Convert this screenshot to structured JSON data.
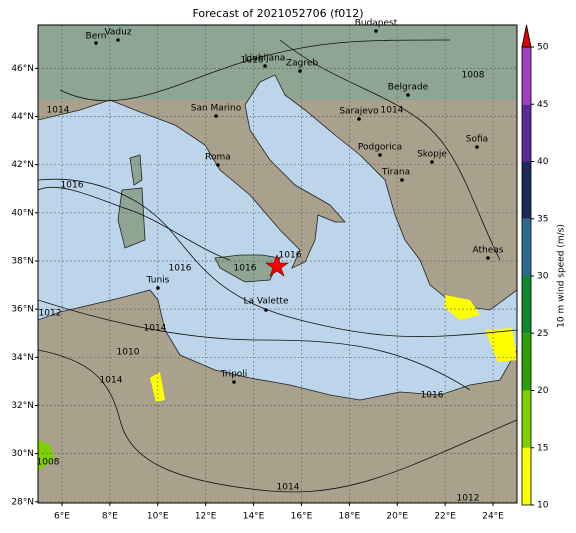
{
  "map": {
    "title": "Forecast of 2021052706 (f012)",
    "xlim": [
      5,
      25
    ],
    "ylim": [
      27.95,
      47.8
    ],
    "xticks": [
      {
        "value": 6,
        "label": "6°E"
      },
      {
        "value": 8,
        "label": "8°E"
      },
      {
        "value": 10,
        "label": "10°E"
      },
      {
        "value": 12,
        "label": "12°E"
      },
      {
        "value": 14,
        "label": "14°E"
      },
      {
        "value": 16,
        "label": "16°E"
      },
      {
        "value": 18,
        "label": "18°E"
      },
      {
        "value": 20,
        "label": "20°E"
      },
      {
        "value": 22,
        "label": "22°E"
      },
      {
        "value": 24,
        "label": "24°E"
      }
    ],
    "yticks": [
      {
        "value": 28,
        "label": "28°N"
      },
      {
        "value": 30,
        "label": "30°N"
      },
      {
        "value": 32,
        "label": "32°N"
      },
      {
        "value": 34,
        "label": "34°N"
      },
      {
        "value": 36,
        "label": "36°N"
      },
      {
        "value": 38,
        "label": "38°N"
      },
      {
        "value": 40,
        "label": "40°N"
      },
      {
        "value": 42,
        "label": "42°N"
      },
      {
        "value": 44,
        "label": "44°N"
      },
      {
        "value": 46,
        "label": "46°N"
      }
    ],
    "grid": true,
    "cities": [
      "Bern",
      "Vaduz",
      "Budapest",
      "Ljubljana",
      "Zagreb",
      "Belgrade",
      "Sarajevo",
      "San Marino",
      "Roma",
      "Podgorica",
      "Skopje",
      "Sofia",
      "Tirana",
      "Atheas",
      "Tunis",
      "La Valette",
      "Tripoli"
    ],
    "isobar_labels": [
      "1016",
      "1014",
      "1016",
      "1016",
      "1016",
      "1014",
      "1012",
      "1010",
      "1008",
      "1014",
      "1014",
      "1016",
      "1012",
      "1008",
      "1014",
      "1016"
    ],
    "colorbar": {
      "label": "10 m wind speed (m/s)",
      "ticks": [
        10,
        15,
        20,
        25,
        30,
        35,
        40,
        45,
        50
      ],
      "colors": [
        "#ffff00",
        "#7fd000",
        "#2ca000",
        "#0a8a2a",
        "#2e6a8e",
        "#1c2a5a",
        "#5a2a9a",
        "#a040c0"
      ],
      "extend_color": "#e00000"
    }
  }
}
